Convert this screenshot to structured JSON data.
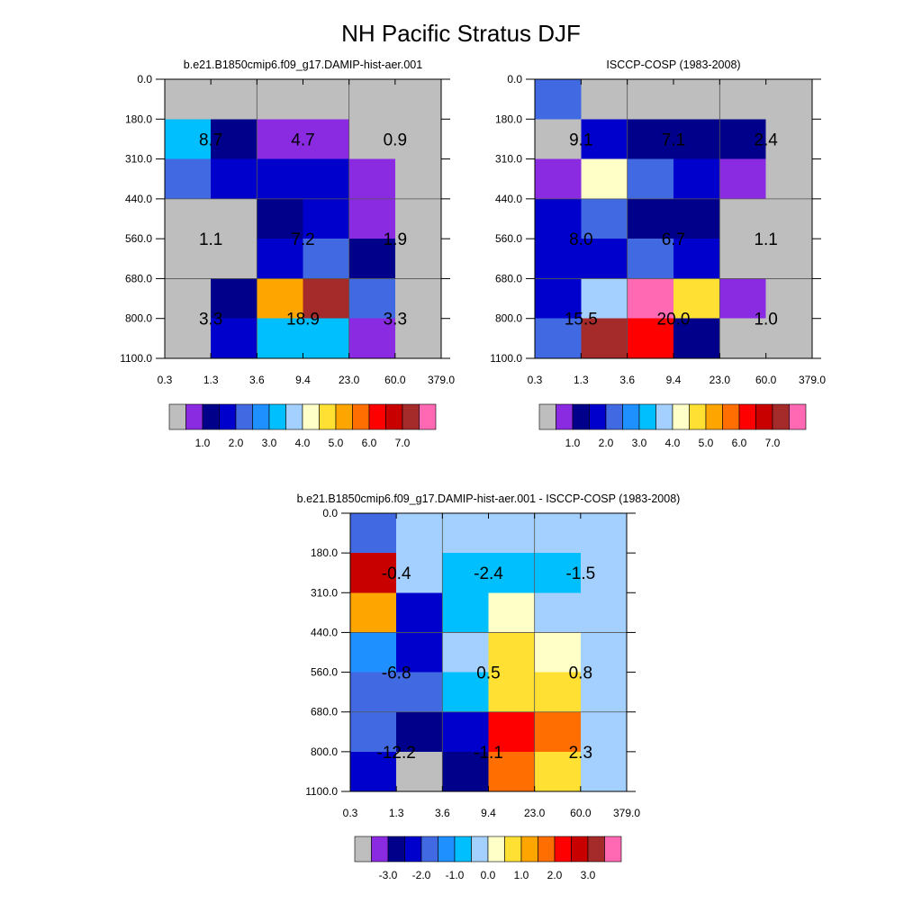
{
  "figure_title": "NH Pacific Stratus DJF",
  "palette": {
    "gray": "#bebebe",
    "violet": "#8a2be2",
    "navy": "#00008b",
    "blue": "#0000cd",
    "royal": "#4169e1",
    "dodger": "#1e90ff",
    "sky": "#00bfff",
    "lightsky": "#a3d0ff",
    "cream": "#ffffc8",
    "gold": "#ffe033",
    "amber": "#ffa500",
    "orange": "#ff6e00",
    "red": "#ff0000",
    "crimson": "#c80000",
    "brown": "#a52a2a",
    "pink": "#ff69b4"
  },
  "colorbar_colors": [
    "gray",
    "violet",
    "navy",
    "blue",
    "royal",
    "dodger",
    "sky",
    "lightsky",
    "cream",
    "gold",
    "amber",
    "orange",
    "red",
    "crimson",
    "brown",
    "pink"
  ],
  "chart_data": [
    {
      "type": "heatmap",
      "title": "b.e21.B1850cmip6.f09_g17.DAMIP-hist-aer.001",
      "x_ticks": [
        "0.3",
        "1.3",
        "3.6",
        "9.4",
        "23.0",
        "60.0",
        "379.0"
      ],
      "y_ticks": [
        "0.0",
        "180.0",
        "310.0",
        "440.0",
        "560.0",
        "680.0",
        "800.0",
        "1100.0"
      ],
      "cells": [
        [
          "gray",
          "gray",
          "gray",
          "gray",
          "gray",
          "gray"
        ],
        [
          "sky",
          "navy",
          "violet",
          "violet",
          "gray",
          "gray"
        ],
        [
          "royal",
          "blue",
          "blue",
          "blue",
          "violet",
          "gray"
        ],
        [
          "gray",
          "gray",
          "navy",
          "blue",
          "violet",
          "gray"
        ],
        [
          "gray",
          "gray",
          "blue",
          "royal",
          "navy",
          "gray"
        ],
        [
          "gray",
          "navy",
          "amber",
          "brown",
          "royal",
          "gray"
        ],
        [
          "gray",
          "blue",
          "sky",
          "sky",
          "violet",
          "gray"
        ]
      ],
      "annotations": [
        {
          "col": 0,
          "row": 0,
          "text": "8.7"
        },
        {
          "col": 1,
          "row": 0,
          "text": "4.7"
        },
        {
          "col": 2,
          "row": 0,
          "text": "0.9"
        },
        {
          "col": 0,
          "row": 1,
          "text": "1.1"
        },
        {
          "col": 1,
          "row": 1,
          "text": "7.2"
        },
        {
          "col": 2,
          "row": 1,
          "text": "1.9"
        },
        {
          "col": 0,
          "row": 2,
          "text": "3.3"
        },
        {
          "col": 1,
          "row": 2,
          "text": "18.9"
        },
        {
          "col": 2,
          "row": 2,
          "text": "3.3"
        }
      ],
      "colorbar_labels": [
        "1.0",
        "2.0",
        "3.0",
        "4.0",
        "5.0",
        "6.0",
        "7.0"
      ]
    },
    {
      "type": "heatmap",
      "title": "ISCCP-COSP (1983-2008)",
      "x_ticks": [
        "0.3",
        "1.3",
        "3.6",
        "9.4",
        "23.0",
        "60.0",
        "379.0"
      ],
      "y_ticks": [
        "0.0",
        "180.0",
        "310.0",
        "440.0",
        "560.0",
        "680.0",
        "800.0",
        "1100.0"
      ],
      "cells": [
        [
          "royal",
          "gray",
          "gray",
          "gray",
          "gray",
          "gray"
        ],
        [
          "gray",
          "blue",
          "navy",
          "navy",
          "navy",
          "gray"
        ],
        [
          "violet",
          "cream",
          "royal",
          "blue",
          "violet",
          "gray"
        ],
        [
          "blue",
          "royal",
          "navy",
          "navy",
          "gray",
          "gray"
        ],
        [
          "blue",
          "blue",
          "royal",
          "blue",
          "gray",
          "gray"
        ],
        [
          "blue",
          "lightsky",
          "pink",
          "gold",
          "violet",
          "gray"
        ],
        [
          "royal",
          "brown",
          "red",
          "navy",
          "gray",
          "gray"
        ]
      ],
      "annotations": [
        {
          "col": 0,
          "row": 0,
          "text": "9.1"
        },
        {
          "col": 1,
          "row": 0,
          "text": "7.1"
        },
        {
          "col": 2,
          "row": 0,
          "text": "2.4"
        },
        {
          "col": 0,
          "row": 1,
          "text": "8.0"
        },
        {
          "col": 1,
          "row": 1,
          "text": "6.7"
        },
        {
          "col": 2,
          "row": 1,
          "text": "1.1"
        },
        {
          "col": 0,
          "row": 2,
          "text": "15.5"
        },
        {
          "col": 1,
          "row": 2,
          "text": "20.0"
        },
        {
          "col": 2,
          "row": 2,
          "text": "1.0"
        }
      ],
      "colorbar_labels": [
        "1.0",
        "2.0",
        "3.0",
        "4.0",
        "5.0",
        "6.0",
        "7.0"
      ]
    },
    {
      "type": "heatmap",
      "title": "b.e21.B1850cmip6.f09_g17.DAMIP-hist-aer.001 - ISCCP-COSP (1983-2008)",
      "x_ticks": [
        "0.3",
        "1.3",
        "3.6",
        "9.4",
        "23.0",
        "60.0",
        "379.0"
      ],
      "y_ticks": [
        "0.0",
        "180.0",
        "310.0",
        "440.0",
        "560.0",
        "680.0",
        "800.0",
        "1100.0"
      ],
      "cells": [
        [
          "royal",
          "lightsky",
          "lightsky",
          "lightsky",
          "lightsky",
          "lightsky"
        ],
        [
          "crimson",
          "lightsky",
          "sky",
          "sky",
          "sky",
          "lightsky"
        ],
        [
          "amber",
          "blue",
          "sky",
          "cream",
          "lightsky",
          "lightsky"
        ],
        [
          "dodger",
          "blue",
          "lightsky",
          "gold",
          "cream",
          "lightsky"
        ],
        [
          "royal",
          "royal",
          "sky",
          "gold",
          "gold",
          "lightsky"
        ],
        [
          "royal",
          "navy",
          "blue",
          "red",
          "orange",
          "lightsky"
        ],
        [
          "blue",
          "gray",
          "navy",
          "orange",
          "gold",
          "lightsky"
        ]
      ],
      "annotations": [
        {
          "col": 0,
          "row": 0,
          "text": "-0.4"
        },
        {
          "col": 1,
          "row": 0,
          "text": "-2.4"
        },
        {
          "col": 2,
          "row": 0,
          "text": "-1.5"
        },
        {
          "col": 0,
          "row": 1,
          "text": "-6.8"
        },
        {
          "col": 1,
          "row": 1,
          "text": "0.5"
        },
        {
          "col": 2,
          "row": 1,
          "text": "0.8"
        },
        {
          "col": 0,
          "row": 2,
          "text": "-12.2"
        },
        {
          "col": 1,
          "row": 2,
          "text": "-1.1"
        },
        {
          "col": 2,
          "row": 2,
          "text": "2.3"
        }
      ],
      "colorbar_labels": [
        "-3.0",
        "-2.0",
        "-1.0",
        "0.0",
        "1.0",
        "2.0",
        "3.0"
      ]
    }
  ]
}
